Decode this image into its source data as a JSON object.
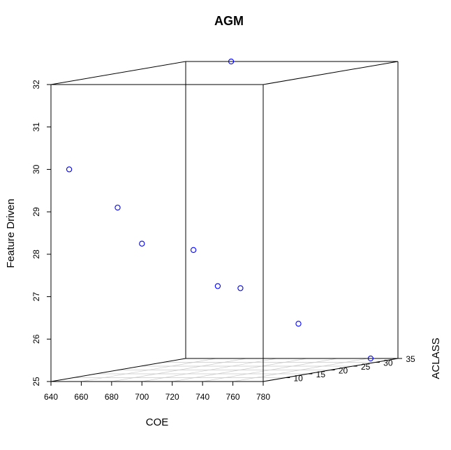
{
  "chart_data": {
    "type": "scatter3d",
    "title": "AGM",
    "xlabel": "COE",
    "ylabel": "ACLASS",
    "zlabel": "Feature Driven",
    "xlim": [
      640,
      780
    ],
    "ylim": [
      5,
      35
    ],
    "zlim": [
      25,
      32
    ],
    "x_ticks": [
      640,
      660,
      680,
      700,
      720,
      740,
      760,
      780
    ],
    "y_ticks": [
      10,
      15,
      20,
      25,
      30,
      35
    ],
    "z_ticks": [
      25,
      26,
      27,
      28,
      29,
      30,
      31,
      32
    ],
    "grid": "floor",
    "point_color": "#0000ff",
    "points": [
      {
        "x": 670,
        "y": 35,
        "z": 32
      },
      {
        "x": 652,
        "y": 5,
        "z": 30
      },
      {
        "x": 684,
        "y": 5,
        "z": 29.1
      },
      {
        "x": 700,
        "y": 5,
        "z": 28.25
      },
      {
        "x": 734,
        "y": 5,
        "z": 28.1
      },
      {
        "x": 750,
        "y": 5,
        "z": 27.25
      },
      {
        "x": 765,
        "y": 5,
        "z": 27.2
      },
      {
        "x": 744,
        "y": 25,
        "z": 26
      },
      {
        "x": 762,
        "y": 35,
        "z": 25
      }
    ]
  }
}
